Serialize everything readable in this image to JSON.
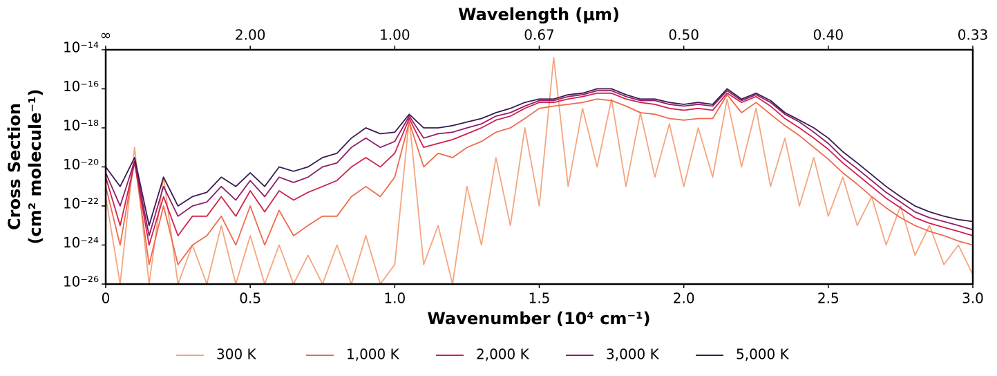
{
  "chart_data": {
    "type": "line",
    "title": "Wavelength (μm)",
    "xlabel": "Wavenumber (10⁴ cm⁻¹)",
    "ylabel": [
      "Cross Section",
      "(cm² molecule⁻¹)"
    ],
    "ylog": true,
    "xlim": [
      0,
      3
    ],
    "ylim": [
      1e-26,
      1e-14
    ],
    "xticks": [
      0,
      0.5,
      {
        "value": 1,
        "label": "1.0"
      },
      1.5,
      {
        "value": 2,
        "label": "2.0"
      },
      2.5,
      {
        "value": 3,
        "label": "3.0"
      }
    ],
    "x2ticks": [
      {
        "value": 0,
        "label": "∞"
      },
      {
        "value": 0.5,
        "label": "2.00"
      },
      {
        "value": 1,
        "label": "1.00"
      },
      {
        "value": 1.5,
        "label": "0.67"
      },
      {
        "value": 2,
        "label": "0.50"
      },
      {
        "value": 2.5,
        "label": "0.40"
      },
      {
        "value": 3,
        "label": "0.33"
      }
    ],
    "yticks": [
      {
        "value": 1e-26,
        "label": "10⁻²⁶"
      },
      {
        "value": 1e-24,
        "label": "10⁻²⁴"
      },
      {
        "value": 1e-22,
        "label": "10⁻²²"
      },
      {
        "value": 1e-20,
        "label": "10⁻²⁰"
      },
      {
        "value": 1e-18,
        "label": "10⁻¹⁸"
      },
      {
        "value": 1e-16,
        "label": "10⁻¹⁶"
      },
      {
        "value": 1e-14,
        "label": "10⁻¹⁴"
      }
    ],
    "legend": "bottom",
    "x": [
      0,
      0.05,
      0.1,
      0.15,
      0.2,
      0.25,
      0.3,
      0.35,
      0.4,
      0.45,
      0.5,
      0.55,
      0.6,
      0.65,
      0.7,
      0.75,
      0.8,
      0.85,
      0.9,
      0.95,
      1,
      1.05,
      1.1,
      1.15,
      1.2,
      1.25,
      1.3,
      1.35,
      1.4,
      1.45,
      1.5,
      1.55,
      1.6,
      1.65,
      1.7,
      1.75,
      1.8,
      1.85,
      1.9,
      1.95,
      2,
      2.05,
      2.1,
      2.15,
      2.2,
      2.25,
      2.3,
      2.35,
      2.4,
      2.45,
      2.5,
      2.55,
      2.6,
      2.65,
      2.7,
      2.75,
      2.8,
      2.85,
      2.9,
      2.95,
      3
    ],
    "series": [
      {
        "name": "300 K",
        "color": "#f4a57f",
        "values": [
          3e-22,
          1e-26,
          1e-19,
          1e-26,
          3e-21,
          1e-26,
          1e-24,
          1e-26,
          1e-23,
          1e-26,
          3e-24,
          1e-26,
          1e-24,
          1e-26,
          3e-25,
          1e-26,
          1e-24,
          1e-26,
          3e-24,
          1e-26,
          1e-25,
          3e-18,
          1e-25,
          1e-23,
          1e-26,
          1e-21,
          1e-24,
          3e-20,
          1e-23,
          1e-18,
          1e-22,
          4e-15,
          1e-21,
          1e-17,
          1e-20,
          3e-17,
          1e-21,
          6e-18,
          3e-21,
          1.6e-18,
          1e-21,
          1e-18,
          3e-21,
          3e-17,
          1e-20,
          1e-17,
          1e-21,
          3e-19,
          1e-22,
          3e-20,
          3e-23,
          3e-21,
          1e-23,
          3e-22,
          1e-24,
          1e-22,
          3e-25,
          1e-23,
          1e-25,
          1e-24,
          3e-26
        ]
      },
      {
        "name": "1,000 K",
        "color": "#ef6a4c",
        "values": [
          1e-21,
          1e-24,
          2e-20,
          1e-25,
          1e-22,
          1e-25,
          1e-24,
          3e-24,
          3e-23,
          1e-24,
          1e-22,
          1e-24,
          6e-23,
          3e-24,
          1e-23,
          3e-23,
          3e-23,
          3e-22,
          1e-21,
          3e-22,
          3e-21,
          2e-18,
          1e-20,
          5e-20,
          3e-20,
          1e-19,
          2e-19,
          6e-19,
          1e-18,
          3e-18,
          1e-17,
          1.3e-17,
          1.6e-17,
          2e-17,
          3e-17,
          2.5e-17,
          1.3e-17,
          6e-18,
          5e-18,
          3e-18,
          2.5e-18,
          3e-18,
          3e-18,
          5e-17,
          6e-18,
          2e-17,
          5e-18,
          1.3e-18,
          4e-19,
          1e-19,
          2.5e-20,
          5e-21,
          1.3e-21,
          3e-22,
          8e-23,
          2.5e-23,
          1e-23,
          5e-24,
          3e-24,
          1.6e-24,
          1e-24
        ]
      },
      {
        "name": "2,000 K",
        "color": "#d2204c",
        "values": [
          3e-21,
          1e-23,
          1.6e-20,
          1e-24,
          3e-22,
          3e-24,
          3e-23,
          3e-23,
          3e-22,
          3e-23,
          6e-22,
          5e-23,
          6e-22,
          2e-22,
          5e-22,
          1e-21,
          2e-21,
          1e-20,
          3e-20,
          1e-20,
          5e-20,
          3e-18,
          1e-19,
          1.6e-19,
          2.5e-19,
          5e-19,
          1e-18,
          2.5e-18,
          4e-18,
          1e-17,
          2e-17,
          2e-17,
          3e-17,
          4e-17,
          6e-17,
          6e-17,
          3e-17,
          2e-17,
          1.6e-17,
          1e-17,
          8e-18,
          1e-17,
          8e-18,
          6e-17,
          2e-17,
          4e-17,
          1.3e-17,
          3e-18,
          1e-18,
          3e-19,
          8e-20,
          1.6e-20,
          4e-21,
          1e-21,
          2.5e-22,
          8e-23,
          2.5e-23,
          1.3e-23,
          8e-24,
          5e-24,
          3e-24
        ]
      },
      {
        "name": "3,000 K",
        "color": "#8f1d6b",
        "values": [
          5e-21,
          1e-22,
          2e-20,
          3e-24,
          1e-21,
          3e-23,
          1e-22,
          1.6e-22,
          1e-21,
          2e-22,
          2e-21,
          3e-22,
          3e-21,
          1.6e-21,
          3e-21,
          1e-20,
          1.6e-20,
          1e-19,
          3e-19,
          1e-19,
          2e-19,
          4e-18,
          3e-19,
          5e-19,
          6e-19,
          1e-18,
          1.6e-18,
          4e-18,
          6e-18,
          1.3e-17,
          2.5e-17,
          2.5e-17,
          4e-17,
          5e-17,
          8e-17,
          8e-17,
          4e-17,
          2.5e-17,
          2.5e-17,
          1.6e-17,
          1.3e-17,
          1.6e-17,
          1.3e-17,
          8e-17,
          2.5e-17,
          5e-17,
          2e-17,
          5e-18,
          2e-18,
          6e-19,
          1.6e-19,
          3e-20,
          8e-21,
          2e-21,
          5e-22,
          1.6e-22,
          5e-23,
          2.5e-23,
          1.6e-23,
          1e-23,
          6e-24
        ]
      },
      {
        "name": "5,000 K",
        "color": "#3c1a4f",
        "values": [
          1e-20,
          1e-21,
          3e-20,
          1e-23,
          3e-21,
          1e-22,
          3e-22,
          5e-22,
          3e-21,
          1e-21,
          5e-21,
          1e-21,
          1e-20,
          6e-21,
          1e-20,
          3e-20,
          5e-20,
          3e-19,
          1e-18,
          5e-19,
          6e-19,
          5e-18,
          1e-18,
          1e-18,
          1.3e-18,
          2e-18,
          3e-18,
          6e-18,
          1e-17,
          2e-17,
          3e-17,
          3e-17,
          5e-17,
          6e-17,
          1e-16,
          1e-16,
          5e-17,
          3e-17,
          3e-17,
          2e-17,
          1.6e-17,
          2e-17,
          1.6e-17,
          1e-16,
          3e-17,
          6e-17,
          2.5e-17,
          6e-18,
          2.5e-18,
          1e-18,
          3e-19,
          6e-20,
          1.6e-20,
          4e-21,
          1e-21,
          3e-22,
          1e-22,
          5e-23,
          3e-23,
          2e-23,
          1.6e-23
        ]
      }
    ]
  }
}
